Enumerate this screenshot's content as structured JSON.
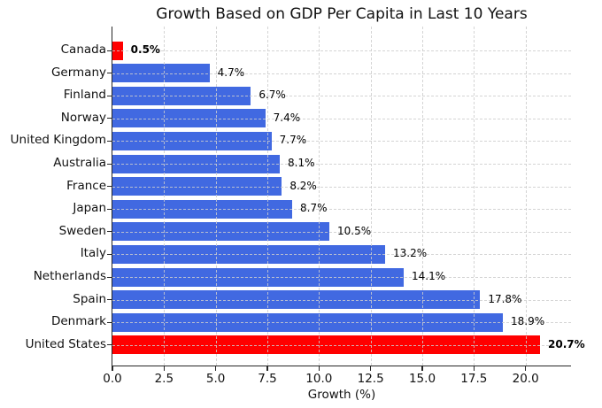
{
  "chart_data": {
    "type": "bar",
    "orientation": "horizontal",
    "title": "Growth Based on GDP Per Capita in Last 10 Years",
    "xlabel": "Growth (%)",
    "ylabel": "",
    "categories": [
      "Canada",
      "Germany",
      "Finland",
      "Norway",
      "United Kingdom",
      "Australia",
      "France",
      "Japan",
      "Sweden",
      "Italy",
      "Netherlands",
      "Spain",
      "Denmark",
      "United States"
    ],
    "values": [
      0.5,
      4.7,
      6.7,
      7.4,
      7.7,
      8.1,
      8.2,
      8.7,
      10.5,
      13.2,
      14.1,
      17.8,
      18.9,
      20.7
    ],
    "value_labels": [
      "0.5%",
      "4.7%",
      "6.7%",
      "7.4%",
      "7.7%",
      "8.1%",
      "8.2%",
      "8.7%",
      "10.5%",
      "13.2%",
      "14.1%",
      "17.8%",
      "18.9%",
      "20.7%"
    ],
    "bold_value_labels": [
      true,
      false,
      false,
      false,
      false,
      false,
      false,
      false,
      false,
      false,
      false,
      false,
      false,
      true
    ],
    "colors": [
      "#ff0000",
      "#4169e1",
      "#4169e1",
      "#4169e1",
      "#4169e1",
      "#4169e1",
      "#4169e1",
      "#4169e1",
      "#4169e1",
      "#4169e1",
      "#4169e1",
      "#4169e1",
      "#4169e1",
      "#ff0000"
    ],
    "bar_color_default": "#4169e1",
    "highlight_color": "#ff0000",
    "xlim": [
      0,
      22.2
    ],
    "xticks": [
      0.0,
      2.5,
      5.0,
      7.5,
      10.0,
      12.5,
      15.0,
      17.5,
      20.0
    ],
    "xtick_labels": [
      "0.0",
      "2.5",
      "5.0",
      "7.5",
      "10.0",
      "12.5",
      "15.0",
      "17.5",
      "20.0"
    ],
    "grid": true,
    "grid_style": "dashed",
    "legend": null
  }
}
